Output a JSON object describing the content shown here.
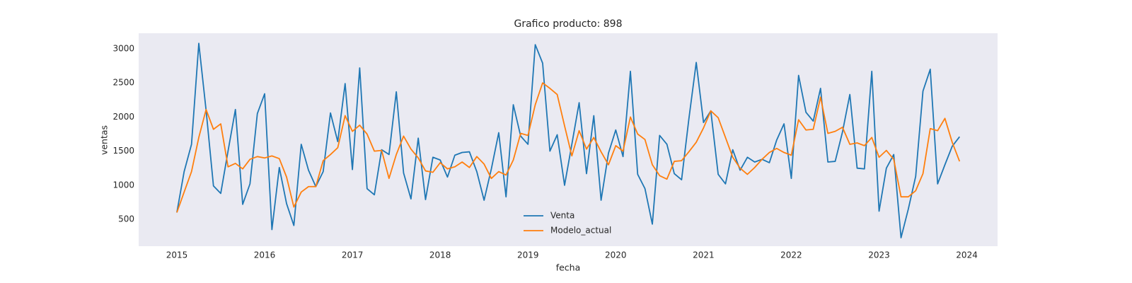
{
  "chart_data": {
    "type": "line",
    "title": "Grafico producto: 898",
    "x_label": "fecha",
    "y_label": "ventas",
    "x": [
      2015,
      2015.083,
      2015.167,
      2015.25,
      2015.333,
      2015.417,
      2015.5,
      2015.583,
      2015.667,
      2015.75,
      2015.833,
      2015.917,
      2016,
      2016.083,
      2016.167,
      2016.25,
      2016.333,
      2016.417,
      2016.5,
      2016.583,
      2016.667,
      2016.75,
      2016.833,
      2016.917,
      2017,
      2017.083,
      2017.167,
      2017.25,
      2017.333,
      2017.417,
      2017.5,
      2017.583,
      2017.667,
      2017.75,
      2017.833,
      2017.917,
      2018,
      2018.083,
      2018.167,
      2018.25,
      2018.333,
      2018.417,
      2018.5,
      2018.583,
      2018.667,
      2018.75,
      2018.833,
      2018.917,
      2019,
      2019.083,
      2019.167,
      2019.25,
      2019.333,
      2019.417,
      2019.5,
      2019.583,
      2019.667,
      2019.75,
      2019.833,
      2019.917,
      2020,
      2020.083,
      2020.167,
      2020.25,
      2020.333,
      2020.417,
      2020.5,
      2020.583,
      2020.667,
      2020.75,
      2020.833,
      2020.917,
      2021,
      2021.083,
      2021.167,
      2021.25,
      2021.333,
      2021.417,
      2021.5,
      2021.583,
      2021.667,
      2021.75,
      2021.833,
      2021.917,
      2022,
      2022.083,
      2022.167,
      2022.25,
      2022.333,
      2022.417,
      2022.5,
      2022.583,
      2022.667,
      2022.75,
      2022.833,
      2022.917,
      2023,
      2023.083,
      2023.167,
      2023.25,
      2023.333,
      2023.417,
      2023.5,
      2023.583,
      2023.667,
      2023.75,
      2023.833,
      2023.917
    ],
    "series": [
      {
        "name": "Venta",
        "color": "#1f77b4",
        "values": [
          600,
          1200,
          1600,
          3080,
          2100,
          990,
          880,
          1500,
          2110,
          720,
          1020,
          2050,
          2340,
          350,
          1260,
          730,
          410,
          1600,
          1220,
          980,
          1200,
          2060,
          1640,
          2490,
          1230,
          2720,
          950,
          860,
          1520,
          1450,
          2370,
          1180,
          800,
          1690,
          790,
          1410,
          1370,
          1120,
          1440,
          1480,
          1490,
          1200,
          780,
          1240,
          1770,
          830,
          2180,
          1720,
          1600,
          3060,
          2790,
          1500,
          1740,
          1000,
          1600,
          2210,
          1170,
          2020,
          780,
          1470,
          1810,
          1420,
          2670,
          1160,
          950,
          430,
          1730,
          1600,
          1170,
          1080,
          1970,
          2800,
          1920,
          2090,
          1160,
          1020,
          1520,
          1220,
          1410,
          1340,
          1380,
          1330,
          1660,
          1900,
          1100,
          2610,
          2070,
          1940,
          2420,
          1340,
          1350,
          1780,
          2330,
          1250,
          1240,
          2670,
          620,
          1250,
          1450,
          230,
          650,
          1130,
          2380,
          2700,
          1020,
          1300,
          1570,
          1710
        ]
      },
      {
        "name": "Modelo_actual",
        "color": "#ff7f0e",
        "values": [
          600,
          900,
          1200,
          1700,
          2110,
          1820,
          1900,
          1270,
          1320,
          1240,
          1380,
          1420,
          1400,
          1430,
          1390,
          1120,
          680,
          900,
          980,
          980,
          1360,
          1450,
          1550,
          2020,
          1790,
          1880,
          1750,
          1500,
          1510,
          1100,
          1450,
          1720,
          1530,
          1400,
          1210,
          1190,
          1330,
          1240,
          1270,
          1340,
          1260,
          1420,
          1310,
          1100,
          1200,
          1150,
          1370,
          1760,
          1730,
          2180,
          2500,
          2420,
          2330,
          1870,
          1430,
          1800,
          1530,
          1700,
          1490,
          1300,
          1580,
          1500,
          2000,
          1750,
          1670,
          1300,
          1140,
          1090,
          1350,
          1360,
          1490,
          1630,
          1840,
          2090,
          1990,
          1700,
          1410,
          1250,
          1160,
          1260,
          1380,
          1480,
          1540,
          1480,
          1440,
          1960,
          1810,
          1820,
          2290,
          1760,
          1790,
          1850,
          1600,
          1620,
          1580,
          1700,
          1410,
          1510,
          1380,
          830,
          830,
          920,
          1170,
          1830,
          1800,
          1980,
          1630,
          1350
        ]
      }
    ],
    "xlim": [
      2014.565,
      2024.35
    ],
    "xticks": [
      2015,
      2016,
      2017,
      2018,
      2019,
      2020,
      2021,
      2022,
      2023,
      2024
    ],
    "ylim": [
      106,
      3228
    ],
    "yticks": [
      500,
      1000,
      1500,
      2000,
      2500,
      3000
    ],
    "grid": false,
    "background": "#eaeaf2",
    "legend": "lower center"
  }
}
